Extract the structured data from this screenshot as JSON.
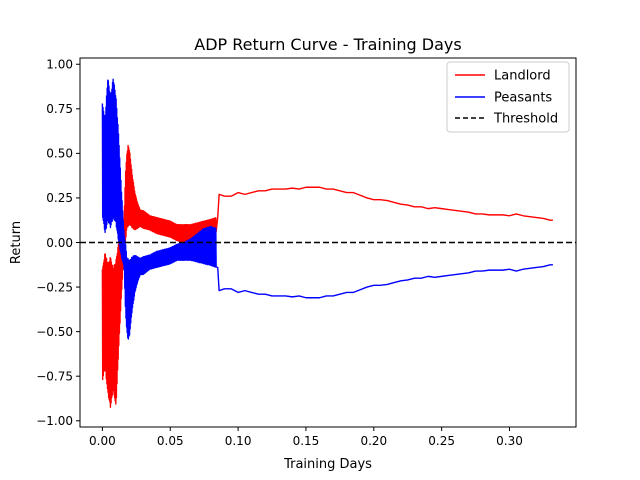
{
  "chart_data": {
    "type": "line",
    "title": "ADP Return Curve - Training Days",
    "xlabel": "Training Days",
    "ylabel": "Return",
    "xlim": [
      -0.0165,
      0.349
    ],
    "ylim": [
      -1.035,
      1.035
    ],
    "xticks": [
      0.0,
      0.05,
      0.1,
      0.15,
      0.2,
      0.25,
      0.3
    ],
    "xtick_labels": [
      "0.00",
      "0.05",
      "0.10",
      "0.15",
      "0.20",
      "0.25",
      "0.30"
    ],
    "yticks": [
      -1.0,
      -0.75,
      -0.5,
      -0.25,
      0.0,
      0.25,
      0.5,
      0.75,
      1.0
    ],
    "ytick_labels": [
      "−1.00",
      "−0.75",
      "−0.50",
      "−0.25",
      "0.00",
      "0.25",
      "0.50",
      "0.75",
      "1.00"
    ],
    "grid": false,
    "legend_position": "top-right",
    "series": [
      {
        "name": "Landlord",
        "color": "#ff0000",
        "style": "solid",
        "envelope_upper": [
          [
            0.0,
            -0.15
          ],
          [
            0.002,
            -0.05
          ],
          [
            0.004,
            -0.12
          ],
          [
            0.006,
            -0.08
          ],
          [
            0.008,
            -0.14
          ],
          [
            0.01,
            -0.1
          ],
          [
            0.012,
            0.0
          ],
          [
            0.014,
            0.08
          ],
          [
            0.016,
            0.14
          ],
          [
            0.017,
            0.38
          ],
          [
            0.018,
            0.5
          ],
          [
            0.019,
            0.55
          ],
          [
            0.02,
            0.52
          ],
          [
            0.022,
            0.38
          ],
          [
            0.024,
            0.28
          ],
          [
            0.026,
            0.22
          ],
          [
            0.028,
            0.18
          ],
          [
            0.03,
            0.18
          ],
          [
            0.035,
            0.15
          ],
          [
            0.04,
            0.14
          ],
          [
            0.045,
            0.13
          ],
          [
            0.05,
            0.12
          ],
          [
            0.055,
            0.1
          ],
          [
            0.06,
            0.1
          ],
          [
            0.065,
            0.1
          ],
          [
            0.07,
            0.11
          ],
          [
            0.075,
            0.12
          ],
          [
            0.08,
            0.13
          ],
          [
            0.084,
            0.14
          ]
        ],
        "envelope_lower": [
          [
            0.0,
            -0.78
          ],
          [
            0.002,
            -0.7
          ],
          [
            0.004,
            -0.85
          ],
          [
            0.006,
            -0.93
          ],
          [
            0.008,
            -0.82
          ],
          [
            0.01,
            -0.93
          ],
          [
            0.012,
            -0.6
          ],
          [
            0.014,
            -0.3
          ],
          [
            0.016,
            -0.05
          ],
          [
            0.017,
            0.0
          ],
          [
            0.018,
            0.08
          ],
          [
            0.02,
            0.1
          ],
          [
            0.022,
            0.08
          ],
          [
            0.024,
            0.07
          ],
          [
            0.026,
            0.08
          ],
          [
            0.028,
            0.09
          ],
          [
            0.03,
            0.08
          ],
          [
            0.035,
            0.07
          ],
          [
            0.04,
            0.05
          ],
          [
            0.045,
            0.04
          ],
          [
            0.05,
            0.03
          ],
          [
            0.055,
            0.01
          ],
          [
            0.06,
            0.0
          ],
          [
            0.065,
            0.01
          ],
          [
            0.07,
            0.03
          ],
          [
            0.075,
            0.05
          ],
          [
            0.08,
            0.06
          ],
          [
            0.084,
            0.06
          ]
        ],
        "values": [
          [
            0.085,
            0.14
          ],
          [
            0.086,
            0.27
          ],
          [
            0.09,
            0.26
          ],
          [
            0.095,
            0.26
          ],
          [
            0.1,
            0.28
          ],
          [
            0.105,
            0.27
          ],
          [
            0.11,
            0.28
          ],
          [
            0.115,
            0.29
          ],
          [
            0.12,
            0.29
          ],
          [
            0.125,
            0.3
          ],
          [
            0.13,
            0.3
          ],
          [
            0.135,
            0.3
          ],
          [
            0.14,
            0.305
          ],
          [
            0.145,
            0.3
          ],
          [
            0.15,
            0.31
          ],
          [
            0.155,
            0.31
          ],
          [
            0.16,
            0.31
          ],
          [
            0.165,
            0.3
          ],
          [
            0.17,
            0.3
          ],
          [
            0.175,
            0.29
          ],
          [
            0.18,
            0.28
          ],
          [
            0.185,
            0.28
          ],
          [
            0.19,
            0.265
          ],
          [
            0.195,
            0.25
          ],
          [
            0.2,
            0.24
          ],
          [
            0.205,
            0.24
          ],
          [
            0.21,
            0.235
          ],
          [
            0.215,
            0.225
          ],
          [
            0.22,
            0.215
          ],
          [
            0.225,
            0.21
          ],
          [
            0.23,
            0.2
          ],
          [
            0.235,
            0.2
          ],
          [
            0.24,
            0.19
          ],
          [
            0.245,
            0.195
          ],
          [
            0.25,
            0.19
          ],
          [
            0.255,
            0.185
          ],
          [
            0.26,
            0.18
          ],
          [
            0.265,
            0.175
          ],
          [
            0.27,
            0.17
          ],
          [
            0.275,
            0.16
          ],
          [
            0.28,
            0.16
          ],
          [
            0.285,
            0.155
          ],
          [
            0.29,
            0.155
          ],
          [
            0.295,
            0.155
          ],
          [
            0.3,
            0.15
          ],
          [
            0.305,
            0.16
          ],
          [
            0.31,
            0.15
          ],
          [
            0.315,
            0.145
          ],
          [
            0.32,
            0.14
          ],
          [
            0.325,
            0.135
          ],
          [
            0.33,
            0.125
          ],
          [
            0.332,
            0.125
          ]
        ]
      },
      {
        "name": "Peasants",
        "color": "#0000ff",
        "style": "solid",
        "envelope_upper": [
          [
            0.0,
            0.78
          ],
          [
            0.002,
            0.7
          ],
          [
            0.004,
            0.93
          ],
          [
            0.006,
            0.82
          ],
          [
            0.008,
            0.93
          ],
          [
            0.01,
            0.82
          ],
          [
            0.012,
            0.6
          ],
          [
            0.014,
            0.3
          ],
          [
            0.016,
            0.05
          ],
          [
            0.017,
            0.0
          ],
          [
            0.018,
            -0.08
          ],
          [
            0.02,
            -0.1
          ],
          [
            0.022,
            -0.08
          ],
          [
            0.024,
            -0.07
          ],
          [
            0.026,
            -0.08
          ],
          [
            0.028,
            -0.09
          ],
          [
            0.03,
            -0.08
          ],
          [
            0.035,
            -0.07
          ],
          [
            0.04,
            -0.05
          ],
          [
            0.045,
            -0.04
          ],
          [
            0.05,
            -0.03
          ],
          [
            0.055,
            -0.01
          ],
          [
            0.06,
            0.0
          ],
          [
            0.065,
            0.02
          ],
          [
            0.07,
            0.05
          ],
          [
            0.075,
            0.08
          ],
          [
            0.08,
            0.09
          ],
          [
            0.084,
            0.08
          ]
        ],
        "envelope_lower": [
          [
            0.0,
            0.15
          ],
          [
            0.002,
            0.05
          ],
          [
            0.004,
            0.12
          ],
          [
            0.006,
            0.08
          ],
          [
            0.008,
            0.14
          ],
          [
            0.01,
            0.1
          ],
          [
            0.012,
            0.0
          ],
          [
            0.014,
            -0.08
          ],
          [
            0.016,
            -0.14
          ],
          [
            0.017,
            -0.38
          ],
          [
            0.018,
            -0.5
          ],
          [
            0.019,
            -0.55
          ],
          [
            0.02,
            -0.52
          ],
          [
            0.022,
            -0.38
          ],
          [
            0.024,
            -0.28
          ],
          [
            0.026,
            -0.22
          ],
          [
            0.028,
            -0.18
          ],
          [
            0.03,
            -0.18
          ],
          [
            0.035,
            -0.15
          ],
          [
            0.04,
            -0.14
          ],
          [
            0.045,
            -0.13
          ],
          [
            0.05,
            -0.12
          ],
          [
            0.055,
            -0.1
          ],
          [
            0.06,
            -0.1
          ],
          [
            0.065,
            -0.1
          ],
          [
            0.07,
            -0.11
          ],
          [
            0.075,
            -0.12
          ],
          [
            0.08,
            -0.13
          ],
          [
            0.084,
            -0.14
          ]
        ],
        "values": [
          [
            0.085,
            -0.14
          ],
          [
            0.086,
            -0.27
          ],
          [
            0.09,
            -0.26
          ],
          [
            0.095,
            -0.26
          ],
          [
            0.1,
            -0.28
          ],
          [
            0.105,
            -0.27
          ],
          [
            0.11,
            -0.28
          ],
          [
            0.115,
            -0.29
          ],
          [
            0.12,
            -0.29
          ],
          [
            0.125,
            -0.3
          ],
          [
            0.13,
            -0.3
          ],
          [
            0.135,
            -0.3
          ],
          [
            0.14,
            -0.305
          ],
          [
            0.145,
            -0.3
          ],
          [
            0.15,
            -0.31
          ],
          [
            0.155,
            -0.31
          ],
          [
            0.16,
            -0.31
          ],
          [
            0.165,
            -0.3
          ],
          [
            0.17,
            -0.3
          ],
          [
            0.175,
            -0.29
          ],
          [
            0.18,
            -0.28
          ],
          [
            0.185,
            -0.28
          ],
          [
            0.19,
            -0.265
          ],
          [
            0.195,
            -0.25
          ],
          [
            0.2,
            -0.24
          ],
          [
            0.205,
            -0.24
          ],
          [
            0.21,
            -0.235
          ],
          [
            0.215,
            -0.225
          ],
          [
            0.22,
            -0.215
          ],
          [
            0.225,
            -0.21
          ],
          [
            0.23,
            -0.2
          ],
          [
            0.235,
            -0.2
          ],
          [
            0.24,
            -0.19
          ],
          [
            0.245,
            -0.195
          ],
          [
            0.25,
            -0.19
          ],
          [
            0.255,
            -0.185
          ],
          [
            0.26,
            -0.18
          ],
          [
            0.265,
            -0.175
          ],
          [
            0.27,
            -0.17
          ],
          [
            0.275,
            -0.16
          ],
          [
            0.28,
            -0.16
          ],
          [
            0.285,
            -0.155
          ],
          [
            0.29,
            -0.155
          ],
          [
            0.295,
            -0.155
          ],
          [
            0.3,
            -0.15
          ],
          [
            0.305,
            -0.16
          ],
          [
            0.31,
            -0.15
          ],
          [
            0.315,
            -0.145
          ],
          [
            0.32,
            -0.14
          ],
          [
            0.325,
            -0.135
          ],
          [
            0.33,
            -0.125
          ],
          [
            0.332,
            -0.125
          ]
        ]
      },
      {
        "name": "Threshold",
        "color": "#000000",
        "style": "dashed",
        "y": 0.0
      }
    ]
  }
}
